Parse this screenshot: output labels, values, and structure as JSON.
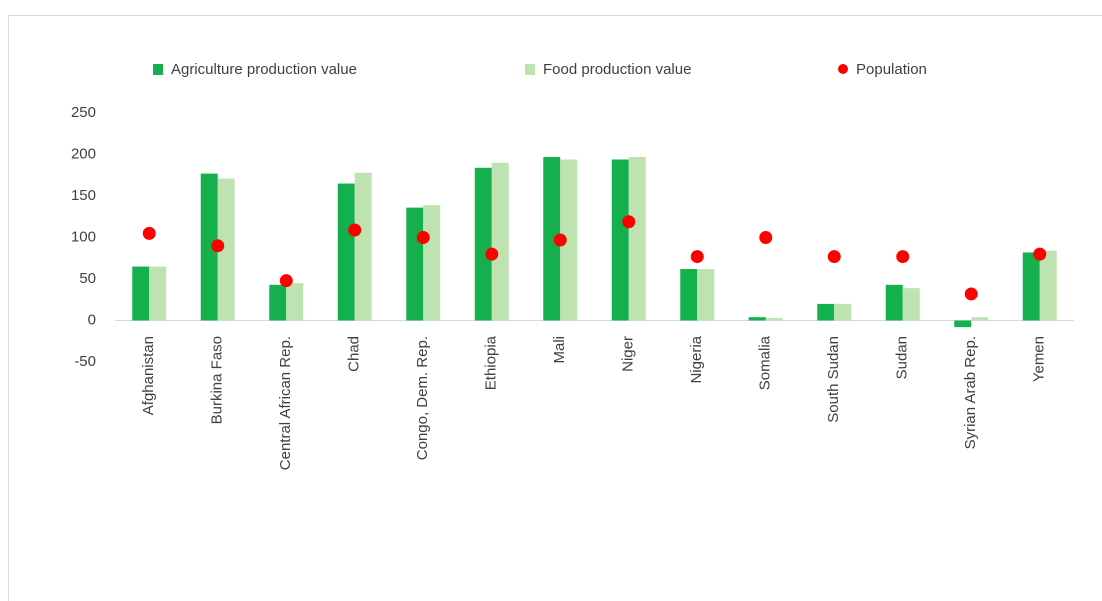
{
  "chart_data": {
    "type": "bar",
    "categories": [
      "Afghanistan",
      "Burkina Faso",
      "Central African Rep.",
      "Chad",
      "Congo, Dem. Rep.",
      "Ethiopia",
      "Mali",
      "Niger",
      "Nigeria",
      "Somalia",
      "South Sudan",
      "Sudan",
      "Syrian Arab Rep.",
      "Yemen"
    ],
    "series": [
      {
        "name": "Agriculture production value",
        "type": "bar",
        "color": "#15b04e",
        "values": [
          65,
          177,
          43,
          165,
          136,
          184,
          197,
          194,
          62,
          4,
          20,
          43,
          -8,
          82
        ]
      },
      {
        "name": "Food production value",
        "type": "bar",
        "color": "#bfe3b0",
        "values": [
          65,
          171,
          45,
          178,
          139,
          190,
          194,
          197,
          62,
          3,
          20,
          39,
          4,
          84
        ]
      },
      {
        "name": "Population",
        "type": "scatter",
        "color": "#ff0000",
        "values": [
          105,
          90,
          48,
          109,
          100,
          80,
          97,
          119,
          77,
          100,
          77,
          77,
          32,
          80
        ]
      }
    ],
    "ylim": [
      -50,
      250
    ],
    "yticks": [
      -50,
      0,
      50,
      100,
      150,
      200,
      250
    ],
    "grid": false,
    "legend": "top"
  }
}
